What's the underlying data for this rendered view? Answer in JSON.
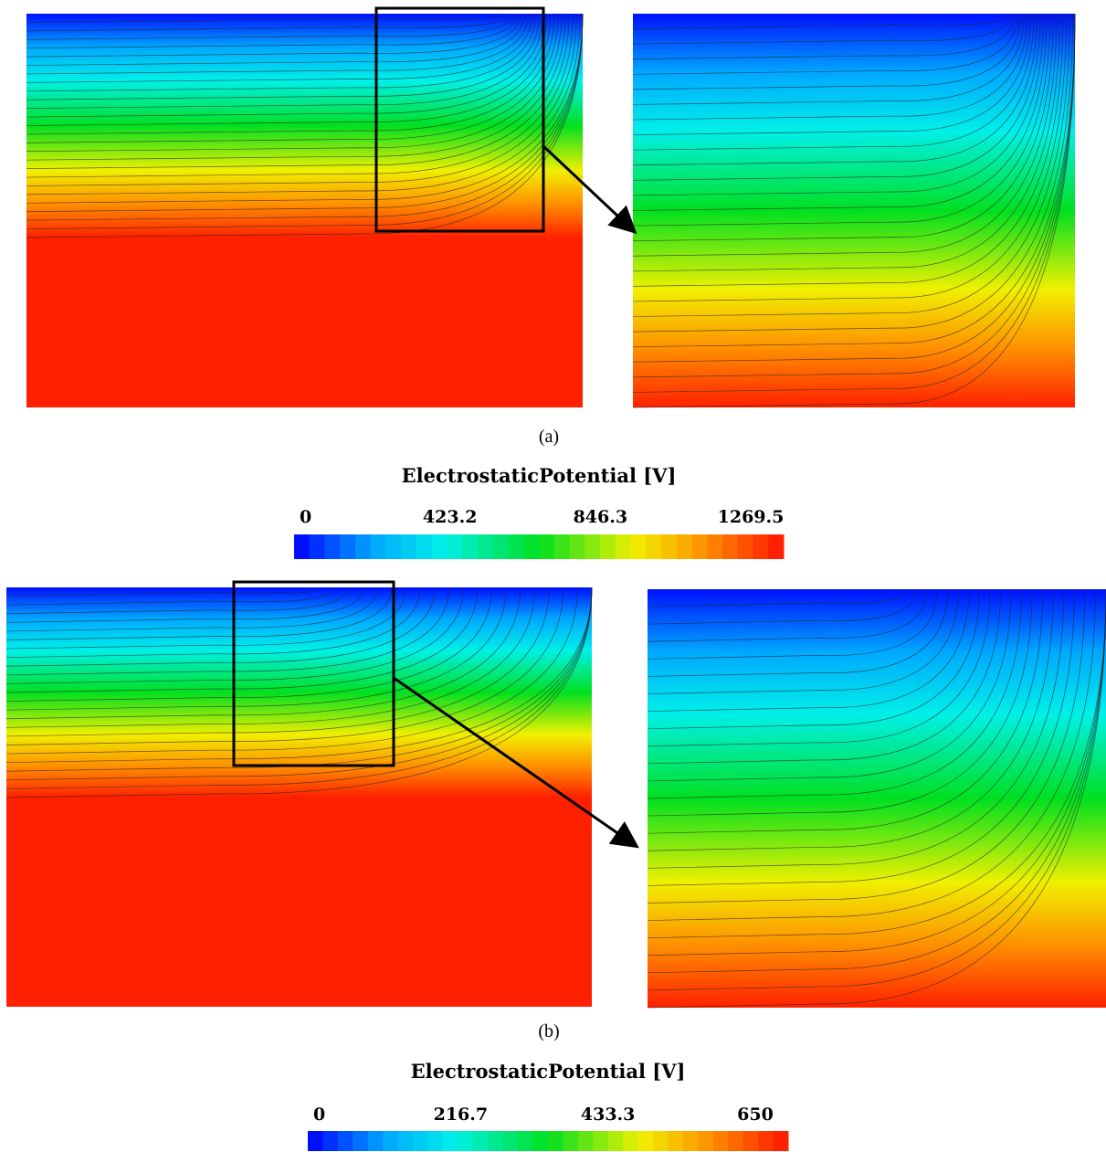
{
  "panels": [
    {
      "caption": "(a)",
      "colorbar": {
        "title": "ElectrostaticPotential [V]",
        "ticks": [
          0,
          423.2,
          846.3,
          1269.5
        ]
      }
    },
    {
      "caption": "(b)",
      "colorbar": {
        "title": "ElectrostaticPotential [V]",
        "ticks": [
          0,
          216.7,
          433.3,
          650
        ]
      }
    }
  ]
}
